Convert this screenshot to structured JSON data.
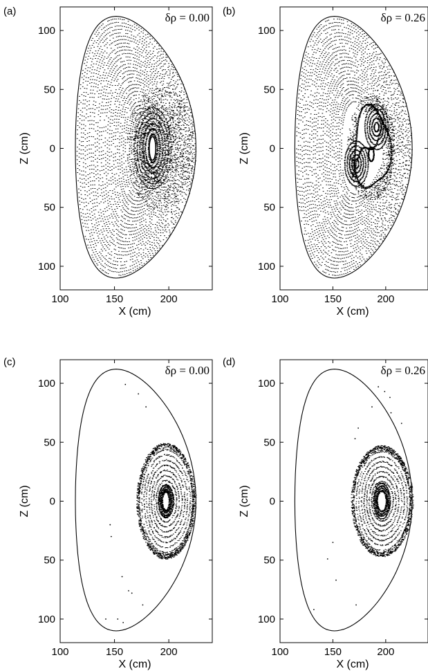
{
  "chart_data": [
    {
      "panel": "(a)",
      "type": "scatter",
      "annotation": "δρ = 0.00",
      "xlabel": "X (cm)",
      "ylabel": "Z (cm)",
      "xlim": [
        100,
        240
      ],
      "ylim": [
        -120,
        120
      ],
      "xticks": [
        100,
        150,
        200
      ],
      "yticks": [
        100,
        50,
        0,
        -50,
        -100
      ],
      "ytick_labels": [
        "100",
        "50",
        "0",
        "50",
        "100"
      ],
      "grid": false,
      "boundary": {
        "x_left": 114,
        "x_right": 225,
        "z_top": 112,
        "z_bottom": -110,
        "x_top": 153
      },
      "pattern": "nested-surfaces",
      "core": {
        "x": 185,
        "z": 0,
        "hole_rx": 3,
        "hole_rz": 10
      }
    },
    {
      "panel": "(b)",
      "type": "scatter",
      "annotation": "δρ = 0.26",
      "xlabel": "X (cm)",
      "ylabel": "Z (cm)",
      "xlim": [
        100,
        240
      ],
      "ylim": [
        -120,
        120
      ],
      "xticks": [
        100,
        150,
        200
      ],
      "yticks": [
        100,
        50,
        0,
        -50,
        -100
      ],
      "ytick_labels": [
        "100",
        "50",
        "0",
        "50",
        "100"
      ],
      "grid": false,
      "boundary": {
        "x_left": 114,
        "x_right": 225,
        "z_top": 112,
        "z_bottom": -110,
        "x_top": 153
      },
      "pattern": "island-chain",
      "core": {
        "x": 182,
        "z": 0
      },
      "islands": [
        {
          "x": 191,
          "z": 18
        },
        {
          "x": 172,
          "z": -13
        },
        {
          "x": 186,
          "z": -5
        }
      ]
    },
    {
      "panel": "(c)",
      "type": "scatter",
      "annotation": "δρ = 0.00",
      "xlabel": "X (cm)",
      "ylabel": "Z (cm)",
      "xlim": [
        100,
        240
      ],
      "ylim": [
        -120,
        120
      ],
      "xticks": [
        100,
        150,
        200
      ],
      "yticks": [
        100,
        50,
        0,
        -50,
        -100
      ],
      "ytick_labels": [
        "100",
        "50",
        "0",
        "50",
        "100"
      ],
      "grid": false,
      "boundary": {
        "x_left": 114,
        "x_right": 225,
        "z_top": 112,
        "z_bottom": -110,
        "x_top": 153
      },
      "pattern": "confined-core",
      "core": {
        "x": 197,
        "z": 0,
        "outer_rx": 26,
        "outer_rz": 48,
        "hole_rx": 2,
        "hole_rz": 6
      },
      "stray_points": [
        [
          160,
          99
        ],
        [
          172,
          91
        ],
        [
          179,
          80
        ],
        [
          146,
          -20
        ],
        [
          147,
          -30
        ],
        [
          157,
          -64
        ],
        [
          163,
          -76
        ],
        [
          166,
          -78
        ],
        [
          142,
          -100
        ],
        [
          153,
          -100
        ],
        [
          176,
          -88
        ],
        [
          158,
          -103
        ]
      ]
    },
    {
      "panel": "(d)",
      "type": "scatter",
      "annotation": "δρ = 0.26",
      "xlabel": "X (cm)",
      "ylabel": "Z (cm)",
      "xlim": [
        100,
        240
      ],
      "ylim": [
        -120,
        120
      ],
      "xticks": [
        100,
        150,
        200
      ],
      "yticks": [
        100,
        50,
        0,
        -50,
        -100
      ],
      "ytick_labels": [
        "100",
        "50",
        "0",
        "50",
        "100"
      ],
      "grid": false,
      "boundary": {
        "x_left": 114,
        "x_right": 225,
        "z_top": 112,
        "z_bottom": -110,
        "x_top": 153
      },
      "pattern": "confined-core",
      "core": {
        "x": 196,
        "z": 0,
        "outer_rx": 28,
        "outer_rz": 46,
        "hole_rx": 3,
        "hole_rz": 7
      },
      "stray_points": [
        [
          193,
          97
        ],
        [
          199,
          93
        ],
        [
          204,
          88
        ],
        [
          174,
          62
        ],
        [
          171,
          53
        ],
        [
          187,
          80
        ],
        [
          205,
          75
        ],
        [
          215,
          66
        ],
        [
          150,
          -35
        ],
        [
          145,
          -49
        ],
        [
          153,
          -67
        ],
        [
          132,
          -92
        ],
        [
          172,
          -88
        ]
      ]
    }
  ],
  "palette": {
    "ink": "#000000",
    "background": "#ffffff"
  }
}
